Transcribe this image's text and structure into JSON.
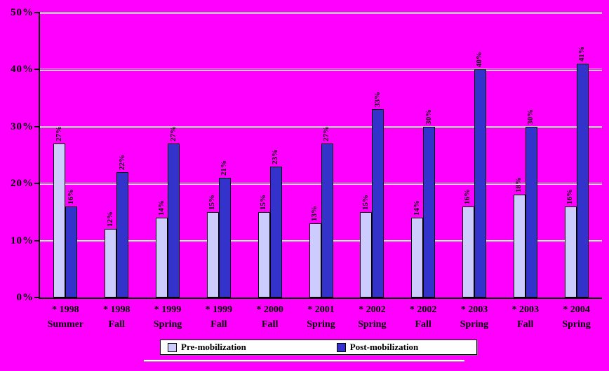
{
  "chart_data": {
    "type": "bar",
    "title": "",
    "xlabel": "",
    "ylabel": "",
    "background": "#ff00ff",
    "gridline_color": "#ffffff",
    "axis_color": "#000000",
    "ylim": [
      0,
      50
    ],
    "ytick_step": 10,
    "ytick_labels": [
      "0%",
      "10%",
      "20%",
      "30%",
      "40%",
      "50%"
    ],
    "value_suffix": "%",
    "legend_position": "bottom",
    "categories": [
      [
        "* 1998",
        "Summer"
      ],
      [
        "* 1998",
        "Fall"
      ],
      [
        "* 1999",
        "Spring"
      ],
      [
        "* 1999",
        "Fall"
      ],
      [
        "* 2000",
        "Fall"
      ],
      [
        "* 2001",
        "Spring"
      ],
      [
        "* 2002",
        "Spring"
      ],
      [
        "* 2002",
        "Fall"
      ],
      [
        "* 2003",
        "Spring"
      ],
      [
        "* 2003",
        "Fall"
      ],
      [
        "* 2004",
        "Spring"
      ]
    ],
    "series": [
      {
        "name": "Pre-mobilization",
        "color": "#ccccff",
        "values": [
          27,
          12,
          14,
          15,
          15,
          13,
          15,
          14,
          16,
          18,
          16
        ]
      },
      {
        "name": "Post-mobilization",
        "color": "#3333cc",
        "values": [
          16,
          22,
          27,
          21,
          23,
          27,
          33,
          30,
          40,
          30,
          41
        ]
      }
    ]
  }
}
